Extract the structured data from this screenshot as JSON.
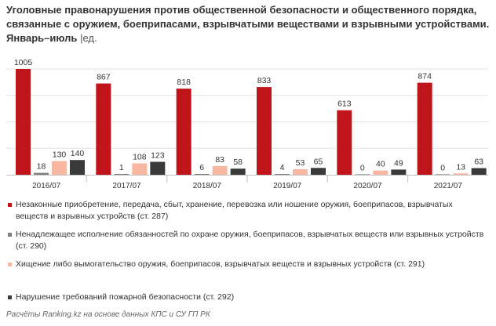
{
  "title": {
    "main": "Уголовные правонарушения против общественной безопасности и общественного порядка, связанные с оружием, боеприпасами, взрывчатыми веществами и взрывными устройствами. Январь–июль",
    "unit": "|ед."
  },
  "chart_data": {
    "type": "bar",
    "categories": [
      "2016/07",
      "2017/07",
      "2018/07",
      "2019/07",
      "2020/07",
      "2021/07"
    ],
    "series": [
      {
        "name": "Незаконные приобретение, передача, сбыт, хранение, перевозка или ношение оружия, боеприпасов, взрывчатых веществ и взрывных устройств (ст. 287)",
        "color": "#c0141b",
        "values": [
          1005,
          867,
          818,
          833,
          613,
          874
        ]
      },
      {
        "name": "Ненадлежащее исполнение обязанностей по охране оружия, боеприпасов, взрывчатых веществ или взрывных устройств (ст. 290)",
        "color": "#7f7f7f",
        "values": [
          18,
          1,
          6,
          4,
          0,
          0
        ]
      },
      {
        "name": "Хищение либо вымогательство оружия, боеприпасов, взрывчатых веществ и взрывных устройств (ст. 291)",
        "color": "#f7b7a0",
        "values": [
          130,
          108,
          83,
          53,
          40,
          13
        ]
      },
      {
        "name": "Нарушение требований пожарной безопасности (ст. 292)",
        "color": "#3a3a3a",
        "values": [
          140,
          123,
          58,
          65,
          49,
          63
        ]
      }
    ],
    "ylim": [
      0,
      1005
    ],
    "grid": true,
    "legend_position": "bottom"
  },
  "footer": "Расчёты Ranking.kz на основе данных КПС и СУ ГП РК"
}
